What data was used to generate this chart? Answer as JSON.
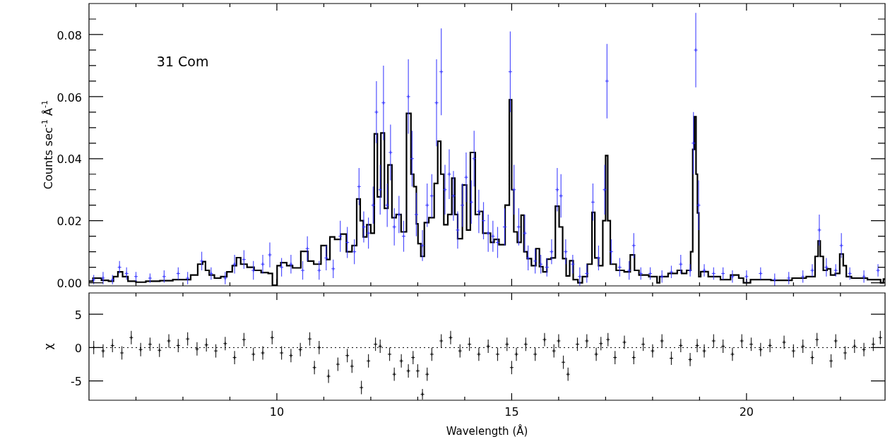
{
  "chart_data": [
    {
      "type": "scatter",
      "ylabel": "Counts sec$^{-1}$ Å$^{-1}$",
      "annotations": [
        "31 Com"
      ],
      "tick_labels": "y",
      "xlim": [
        6,
        22.95
      ],
      "xticks": [
        {
          "value": 7,
          "label": null
        },
        {
          "value": 8,
          "label": null
        },
        {
          "value": 9,
          "label": null
        },
        10,
        {
          "value": 11,
          "label": null
        },
        {
          "value": 12,
          "label": null
        },
        {
          "value": 13,
          "label": null
        },
        {
          "value": 14,
          "label": null
        },
        15,
        {
          "value": 16,
          "label": null
        },
        {
          "value": 17,
          "label": null
        },
        {
          "value": 18,
          "label": null
        },
        {
          "value": 19,
          "label": null
        },
        20,
        {
          "value": 21,
          "label": null
        },
        {
          "value": 22,
          "label": null
        }
      ],
      "ylim": [
        -0.001,
        0.09
      ],
      "yticks": [
        {
          "value": 0,
          "label": "0.00"
        },
        {
          "value": 0.005,
          "label": null
        },
        {
          "value": 0.01,
          "label": null
        },
        {
          "value": 0.015,
          "label": null
        },
        {
          "value": 0.02,
          "label": "0.02"
        },
        {
          "value": 0.025,
          "label": null
        },
        {
          "value": 0.03,
          "label": null
        },
        {
          "value": 0.035,
          "label": null
        },
        {
          "value": 0.04,
          "label": "0.04"
        },
        {
          "value": 0.045,
          "label": null
        },
        {
          "value": 0.05,
          "label": null
        },
        {
          "value": 0.055,
          "label": null
        },
        {
          "value": 0.06,
          "label": "0.06"
        },
        {
          "value": 0.065,
          "label": null
        },
        {
          "value": 0.07,
          "label": null
        },
        {
          "value": 0.075,
          "label": null
        },
        {
          "value": 0.08,
          "label": "0.08"
        },
        {
          "value": 0.085,
          "label": null
        }
      ],
      "series": [
        {
          "type": "scatter",
          "color": "#3333ff",
          "marker": "cross",
          "x": [
            6.1,
            6.3,
            6.5,
            6.65,
            6.8,
            7.0,
            7.3,
            7.6,
            7.9,
            8.1,
            8.4,
            8.6,
            8.9,
            9.1,
            9.3,
            9.5,
            9.7,
            9.85,
            10.1,
            10.3,
            10.55,
            10.65,
            10.9,
            11.05,
            11.2,
            11.35,
            11.5,
            11.65,
            11.75,
            11.85,
            11.95,
            12.05,
            12.12,
            12.2,
            12.27,
            12.35,
            12.42,
            12.5,
            12.6,
            12.7,
            12.8,
            12.88,
            12.97,
            13.1,
            13.2,
            13.3,
            13.4,
            13.5,
            13.58,
            13.67,
            13.76,
            13.85,
            13.95,
            14.03,
            14.14,
            14.2,
            14.3,
            14.4,
            14.5,
            14.6,
            14.7,
            14.85,
            14.97,
            15.05,
            15.15,
            15.28,
            15.35,
            15.5,
            15.62,
            15.75,
            15.85,
            15.97,
            16.05,
            16.15,
            16.3,
            16.45,
            16.6,
            16.73,
            16.85,
            16.98,
            17.03,
            17.12,
            17.3,
            17.5,
            17.6,
            17.75,
            17.95,
            18.2,
            18.4,
            18.6,
            18.8,
            18.87,
            18.92,
            18.98,
            19.1,
            19.3,
            19.5,
            19.7,
            20.0,
            20.3,
            20.6,
            20.9,
            21.2,
            21.4,
            21.55,
            21.7,
            21.9,
            22.02,
            22.2,
            22.5,
            22.8
          ],
          "values": [
            0.001,
            0.0015,
            0.001,
            0.005,
            0.003,
            0.002,
            0.0015,
            0.002,
            0.003,
            0.0015,
            0.007,
            0.003,
            0.0015,
            0.006,
            0.0075,
            0.004,
            0.006,
            0.009,
            0.005,
            0.006,
            0.004,
            0.011,
            0.004,
            0.008,
            0.0045,
            0.015,
            0.013,
            0.01,
            0.031,
            0.018,
            0.016,
            0.025,
            0.055,
            0.03,
            0.058,
            0.025,
            0.042,
            0.018,
            0.022,
            0.015,
            0.06,
            0.04,
            0.022,
            0.012,
            0.025,
            0.028,
            0.058,
            0.068,
            0.03,
            0.035,
            0.028,
            0.017,
            0.025,
            0.034,
            0.026,
            0.04,
            0.023,
            0.02,
            0.016,
            0.015,
            0.013,
            0.018,
            0.068,
            0.03,
            0.018,
            0.016,
            0.008,
            0.007,
            0.006,
            0.005,
            0.01,
            0.03,
            0.028,
            0.01,
            0.006,
            0.002,
            0.003,
            0.026,
            0.008,
            0.03,
            0.065,
            0.01,
            0.005,
            0.004,
            0.012,
            0.003,
            0.003,
            0.002,
            0.0035,
            0.006,
            0.004,
            0.045,
            0.075,
            0.025,
            0.004,
            0.003,
            0.003,
            0.002,
            0.002,
            0.003,
            0.001,
            0.0015,
            0.002,
            0.004,
            0.017,
            0.005,
            0.004,
            0.012,
            0.003,
            0.002,
            0.004
          ],
          "errors": [
            0.0015,
            0.002,
            0.0015,
            0.002,
            0.002,
            0.0015,
            0.0015,
            0.002,
            0.002,
            0.002,
            0.003,
            0.002,
            0.002,
            0.003,
            0.003,
            0.003,
            0.003,
            0.004,
            0.003,
            0.003,
            0.003,
            0.004,
            0.003,
            0.004,
            0.003,
            0.005,
            0.005,
            0.004,
            0.006,
            0.005,
            0.005,
            0.006,
            0.01,
            0.008,
            0.012,
            0.007,
            0.009,
            0.006,
            0.006,
            0.005,
            0.012,
            0.009,
            0.007,
            0.005,
            0.007,
            0.007,
            0.014,
            0.014,
            0.008,
            0.008,
            0.008,
            0.006,
            0.007,
            0.008,
            0.007,
            0.009,
            0.007,
            0.006,
            0.006,
            0.005,
            0.005,
            0.006,
            0.013,
            0.008,
            0.006,
            0.006,
            0.004,
            0.004,
            0.003,
            0.003,
            0.004,
            0.007,
            0.007,
            0.004,
            0.003,
            0.003,
            0.003,
            0.006,
            0.004,
            0.008,
            0.012,
            0.004,
            0.003,
            0.003,
            0.004,
            0.002,
            0.002,
            0.002,
            0.002,
            0.003,
            0.002,
            0.01,
            0.012,
            0.008,
            0.002,
            0.002,
            0.002,
            0.002,
            0.002,
            0.002,
            0.002,
            0.002,
            0.002,
            0.002,
            0.005,
            0.003,
            0.002,
            0.004,
            0.002,
            0.002,
            0.002
          ]
        },
        {
          "type": "step",
          "color": "#000000",
          "marker": "none",
          "x": [
            6.0,
            6.17,
            6.36,
            6.47,
            6.57,
            6.66,
            6.77,
            6.89,
            7.11,
            7.31,
            7.71,
            7.86,
            8.09,
            8.24,
            8.39,
            8.45,
            8.51,
            8.61,
            8.73,
            8.88,
            8.99,
            9.11,
            9.17,
            9.29,
            9.44,
            9.59,
            9.74,
            9.89,
            9.92,
            10.0,
            10.01,
            10.16,
            10.26,
            10.41,
            10.61,
            10.71,
            10.86,
            11.02,
            11.09,
            11.17,
            11.29,
            11.42,
            11.54,
            11.66,
            11.74,
            11.81,
            11.87,
            11.96,
            12.04,
            12.11,
            12.17,
            12.26,
            12.32,
            12.41,
            12.49,
            12.59,
            12.7,
            12.82,
            12.89,
            12.94,
            13.0,
            13.01,
            13.12,
            13.16,
            13.31,
            13.39,
            13.46,
            13.52,
            13.59,
            13.69,
            13.76,
            13.82,
            13.88,
            14.02,
            14.06,
            14.18,
            14.27,
            14.35,
            14.42,
            14.51,
            14.59,
            14.66,
            14.8,
            14.92,
            14.98,
            15.02,
            15.07,
            15.17,
            15.23,
            15.29,
            15.37,
            15.47,
            15.56,
            15.62,
            15.71,
            15.79,
            15.89,
            15.97,
            16.05,
            16.12,
            16.2,
            16.27,
            16.35,
            16.47,
            16.54,
            16.68,
            16.74,
            16.8,
            16.9,
            16.98,
            17.02,
            17.07,
            17.13,
            17.32,
            17.47,
            17.58,
            17.65,
            17.77,
            18.07,
            18.12,
            18.18,
            18.48,
            18.57,
            18.67,
            18.78,
            18.84,
            18.87,
            18.91,
            18.94,
            18.97,
            19.0,
            19.05,
            19.32,
            19.57,
            19.75,
            19.92,
            19.95,
            20.22,
            20.82,
            21.12,
            21.42,
            21.5,
            21.55,
            21.59,
            21.68,
            21.75,
            21.83,
            21.95,
            22.02,
            22.1,
            22.15,
            22.32,
            22.83,
            22.88,
            22.95
          ],
          "values": [
            0.0005,
            0.0015,
            0.0008,
            0.0005,
            0.002,
            0.0035,
            0.002,
            0.0005,
            0.0002,
            0.0005,
            0.0007,
            0.001,
            0.001,
            0.0025,
            0.006,
            0.0068,
            0.004,
            0.0025,
            0.0015,
            0.002,
            0.0035,
            0.0055,
            0.0081,
            0.006,
            0.005,
            0.004,
            0.0033,
            0.003,
            -0.0008,
            -0.0008,
            0.0055,
            0.0065,
            0.0055,
            0.0048,
            0.0101,
            0.007,
            0.006,
            0.012,
            0.0075,
            0.0148,
            0.014,
            0.0157,
            0.01,
            0.012,
            0.027,
            0.02,
            0.0148,
            0.0187,
            0.016,
            0.048,
            0.0277,
            0.0483,
            0.024,
            0.038,
            0.021,
            0.022,
            0.0164,
            0.0546,
            0.035,
            0.031,
            0.019,
            0.0126,
            0.0085,
            0.0194,
            0.021,
            0.032,
            0.0456,
            0.035,
            0.0187,
            0.022,
            0.0337,
            0.022,
            0.0142,
            0.0315,
            0.017,
            0.042,
            0.022,
            0.023,
            0.016,
            0.016,
            0.013,
            0.014,
            0.0123,
            0.025,
            0.059,
            0.03,
            0.0164,
            0.013,
            0.0218,
            0.01,
            0.0078,
            0.0055,
            0.011,
            0.0052,
            0.0035,
            0.0076,
            0.008,
            0.0247,
            0.018,
            0.0078,
            0.0022,
            0.0071,
            0.001,
            0.0,
            0.002,
            0.006,
            0.0227,
            0.008,
            0.0055,
            0.02,
            0.041,
            0.02,
            0.006,
            0.004,
            0.0035,
            0.009,
            0.004,
            0.0025,
            0.002,
            0.0,
            0.002,
            0.003,
            0.004,
            0.003,
            0.004,
            0.01,
            0.043,
            0.0535,
            0.035,
            0.0225,
            0.002,
            0.0036,
            0.002,
            0.001,
            0.0025,
            0.0015,
            0.0,
            0.001,
            0.0008,
            0.0015,
            0.002,
            0.0085,
            0.0135,
            0.0085,
            0.004,
            0.0045,
            0.0025,
            0.003,
            0.0093,
            0.0055,
            0.002,
            0.0015,
            0.001,
            0.0,
            0.0012
          ]
        }
      ]
    },
    {
      "type": "scatter",
      "xlabel": "Wavelength (Å)",
      "ylabel": "χ",
      "xlim": [
        6,
        22.95
      ],
      "xticks": [
        {
          "value": 7,
          "label": null
        },
        {
          "value": 8,
          "label": null
        },
        {
          "value": 9,
          "label": null
        },
        10,
        {
          "value": 11,
          "label": null
        },
        {
          "value": 12,
          "label": null
        },
        {
          "value": 13,
          "label": null
        },
        {
          "value": 14,
          "label": null
        },
        15,
        {
          "value": 16,
          "label": null
        },
        {
          "value": 17,
          "label": null
        },
        {
          "value": 18,
          "label": null
        },
        {
          "value": 19,
          "label": null
        },
        20,
        {
          "value": 21,
          "label": null
        },
        {
          "value": 22,
          "label": null
        }
      ],
      "ylim": [
        -7.9,
        8.2
      ],
      "yticks": [
        -5,
        0,
        5
      ],
      "ref_lines": [
        {
          "axis": "y",
          "value": 0,
          "line_style": "dotted"
        }
      ],
      "series": [
        {
          "type": "scatter",
          "color": "#000000",
          "marker": "cross",
          "x": [
            6.1,
            6.3,
            6.5,
            6.7,
            6.9,
            7.1,
            7.3,
            7.5,
            7.7,
            7.9,
            8.1,
            8.3,
            8.5,
            8.7,
            8.9,
            9.1,
            9.3,
            9.5,
            9.7,
            9.9,
            10.1,
            10.3,
            10.5,
            10.7,
            10.8,
            10.9,
            11.1,
            11.3,
            11.5,
            11.6,
            11.8,
            11.95,
            12.1,
            12.2,
            12.4,
            12.5,
            12.65,
            12.8,
            12.9,
            13.0,
            13.1,
            13.2,
            13.3,
            13.5,
            13.7,
            13.9,
            14.1,
            14.3,
            14.5,
            14.7,
            14.9,
            15.0,
            15.1,
            15.3,
            15.5,
            15.7,
            15.9,
            16.0,
            16.1,
            16.2,
            16.4,
            16.6,
            16.8,
            16.9,
            17.05,
            17.2,
            17.4,
            17.6,
            17.8,
            18.0,
            18.2,
            18.4,
            18.6,
            18.8,
            18.95,
            19.1,
            19.3,
            19.5,
            19.7,
            19.9,
            20.1,
            20.3,
            20.5,
            20.8,
            21.0,
            21.2,
            21.4,
            21.5,
            21.8,
            21.9,
            22.1,
            22.3,
            22.5,
            22.7,
            22.85
          ],
          "values": [
            0,
            -0.5,
            0.3,
            -0.8,
            1.5,
            -0.3,
            0.5,
            -0.4,
            1,
            0.3,
            1.3,
            -0.2,
            0.4,
            -0.5,
            0.6,
            -1.5,
            1.2,
            -1,
            -0.8,
            1.5,
            -0.8,
            -1.2,
            -0.3,
            1.3,
            -3,
            0,
            -4.3,
            -2.5,
            -1.2,
            -2.8,
            -6,
            -2,
            0.5,
            0.2,
            -1,
            -4,
            -2,
            -3.5,
            -1.5,
            -3.5,
            -7,
            -4,
            -1,
            1,
            1.5,
            -0.5,
            0.5,
            -1,
            0.2,
            -1,
            0.5,
            -3,
            -1,
            0.5,
            -1,
            1.2,
            -0.5,
            1,
            -2.2,
            -4,
            0.5,
            1,
            -1,
            0.6,
            1.2,
            -1.5,
            0.8,
            -1.5,
            0.5,
            -0.5,
            1,
            -1.6,
            0.3,
            -1.8,
            0.3,
            -0.5,
            1,
            0.2,
            -1,
            1,
            0.5,
            -0.3,
            0.3,
            0.8,
            -0.5,
            0.2,
            -1.5,
            1.2,
            -2,
            1,
            -0.8,
            0.2,
            -0.3,
            0.5,
            1.5
          ],
          "errors": [
            1,
            1,
            1,
            1,
            1,
            1,
            1,
            1,
            1,
            1,
            1,
            1,
            1,
            1,
            1,
            1,
            1,
            1,
            1,
            1,
            1,
            1,
            1,
            1,
            1,
            1,
            1,
            1,
            1,
            1,
            1,
            1,
            1,
            1,
            1,
            1,
            1,
            1,
            1,
            1,
            0.8,
            1,
            1,
            1,
            1,
            1,
            1,
            1,
            1,
            1,
            1,
            1,
            1,
            1,
            1,
            1,
            1,
            1,
            1,
            1,
            1,
            1,
            1,
            1,
            1,
            1,
            1,
            1,
            1,
            1,
            1,
            1,
            1,
            1,
            1,
            1,
            1,
            1,
            1,
            1,
            1,
            1,
            1,
            1,
            1,
            1,
            1,
            1,
            1,
            1,
            1,
            1,
            1,
            1,
            1
          ]
        }
      ]
    }
  ]
}
